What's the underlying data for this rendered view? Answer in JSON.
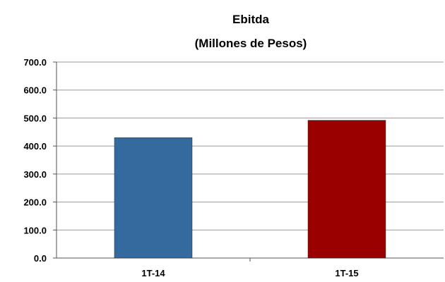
{
  "chart_data": {
    "type": "bar",
    "title": "Ebitda",
    "subtitle": "(Millones de Pesos)",
    "categories": [
      "1T-14",
      "1T-15"
    ],
    "values": [
      430.0,
      492.0
    ],
    "colors": [
      "#356a9e",
      "#9b0000"
    ],
    "ylim": [
      0,
      700
    ],
    "yticks": [
      0,
      100,
      200,
      300,
      400,
      500,
      600,
      700
    ],
    "ytick_labels": [
      "0.0",
      "100.0",
      "200.0",
      "300.0",
      "400.0",
      "500.0",
      "600.0",
      "700.0"
    ],
    "grid": true,
    "legend": "none"
  }
}
